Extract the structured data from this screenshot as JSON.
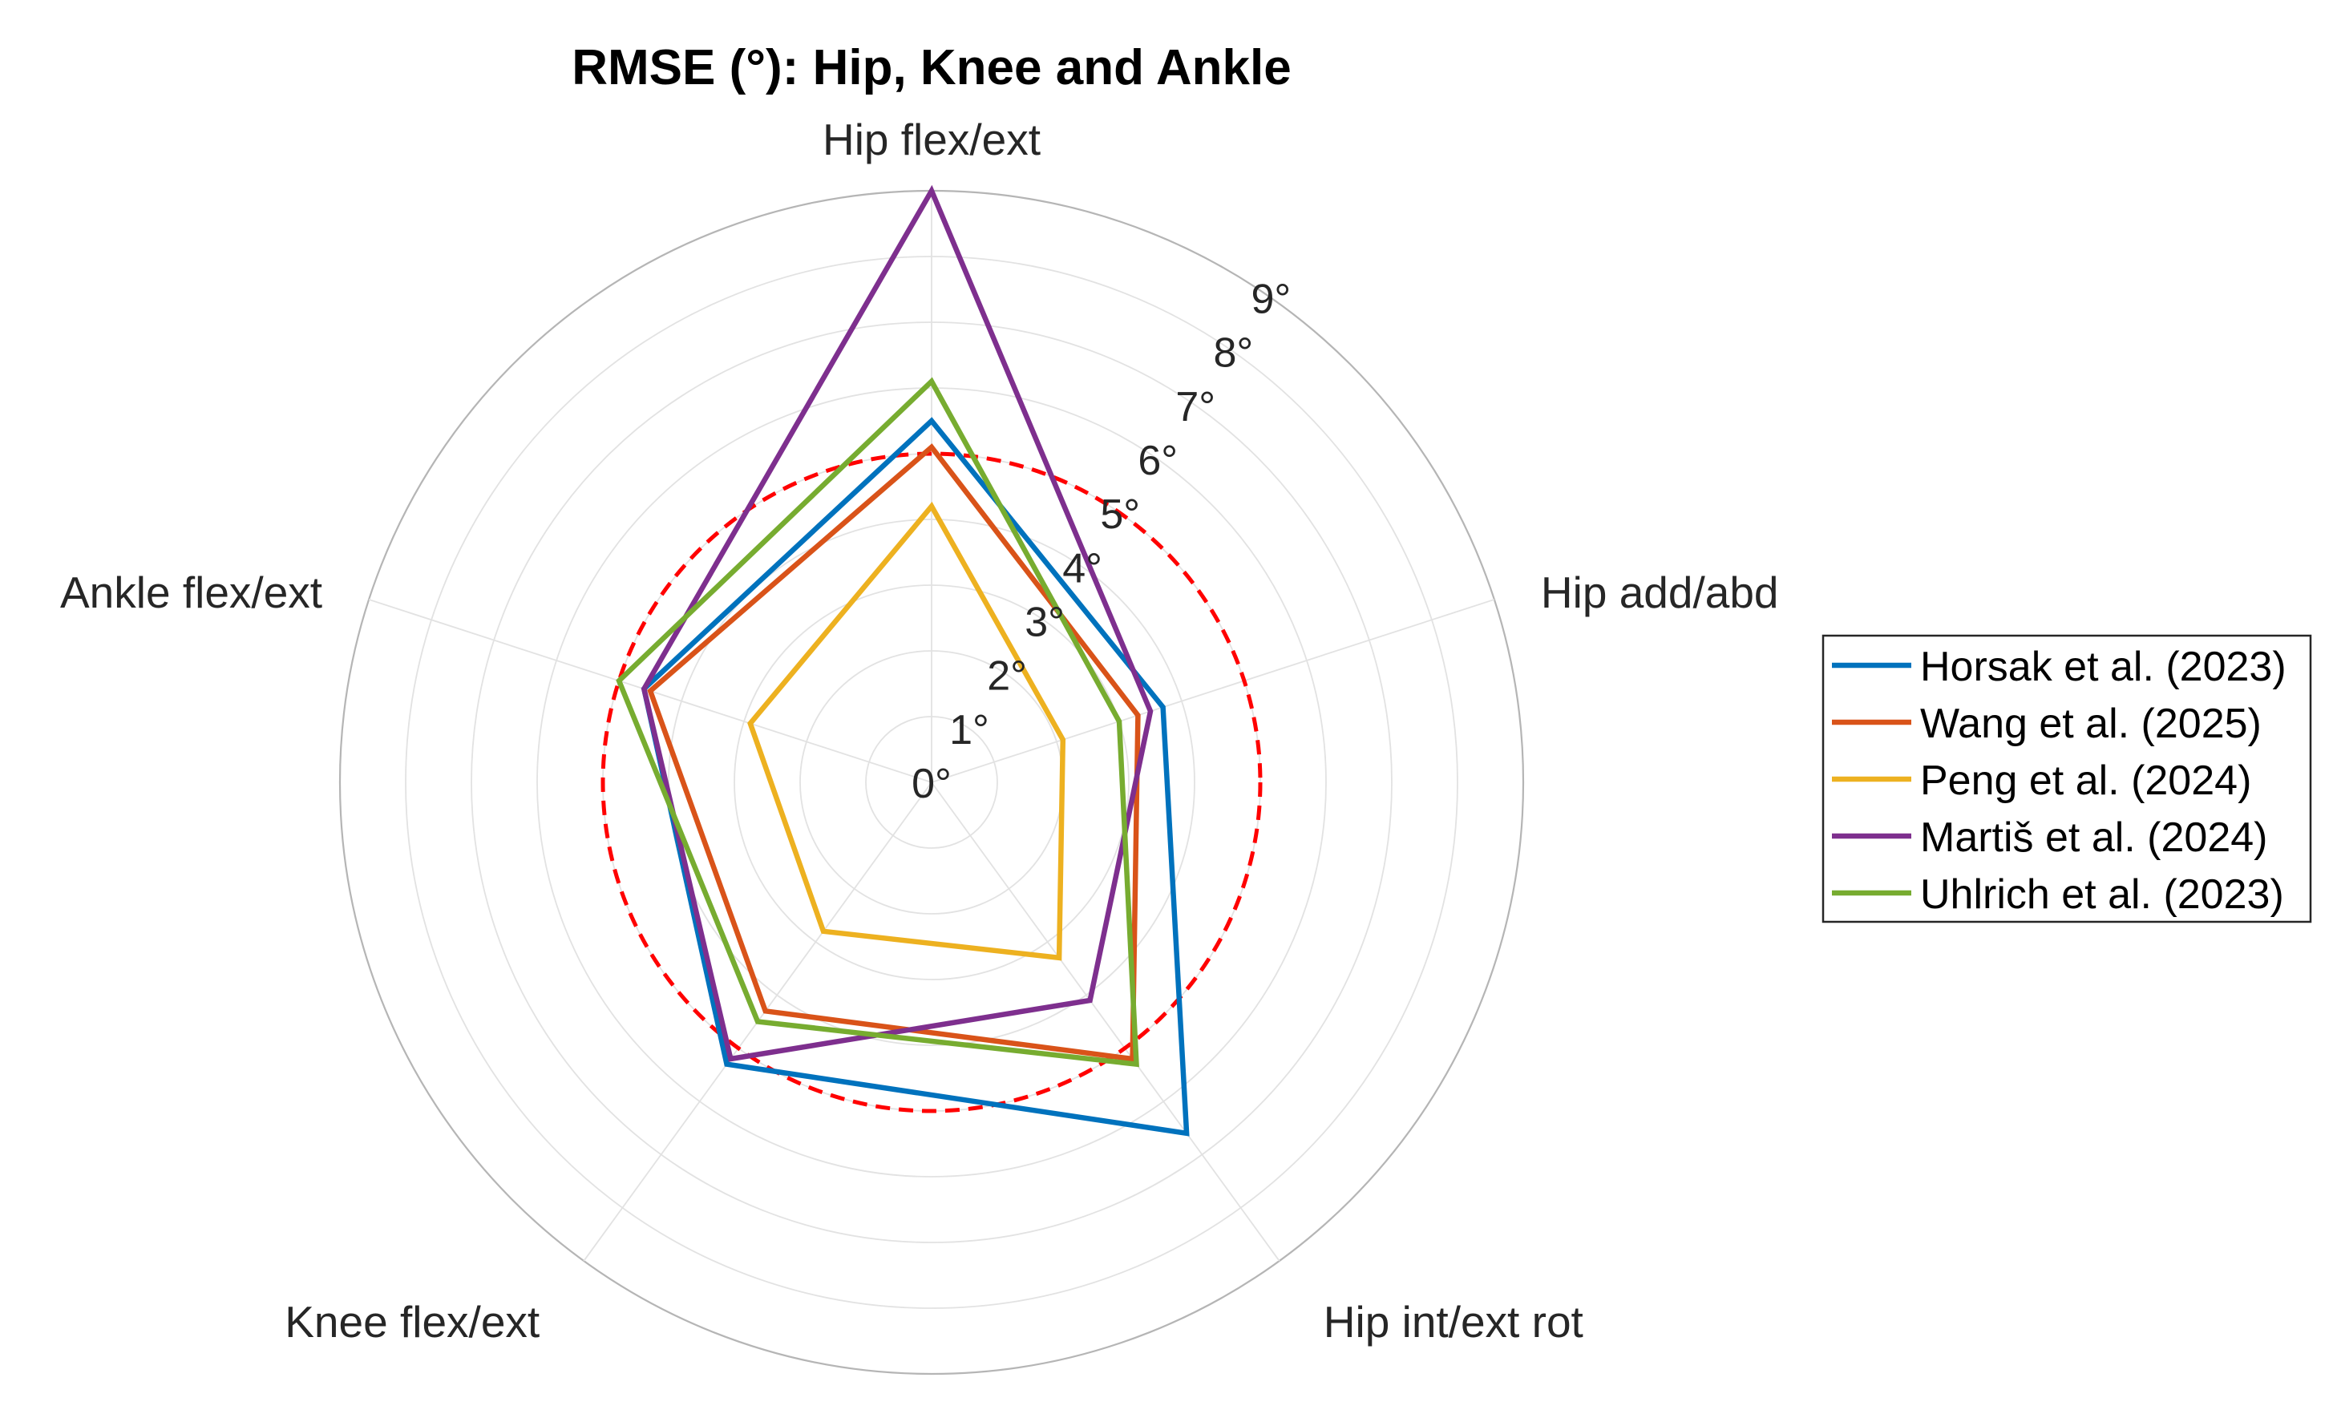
{
  "chart_data": {
    "type": "radar",
    "title": "RMSE (°): Hip, Knee and Ankle",
    "axes": [
      "Hip flex/ext",
      "Hip add/abd",
      "Hip int/ext rot",
      "Knee flex/ext",
      "Ankle flex/ext"
    ],
    "radial_ticks": [
      "0°",
      "1°",
      "2°",
      "3°",
      "4°",
      "5°",
      "6°",
      "7°",
      "8°",
      "9°"
    ],
    "rlim": [
      0,
      9
    ],
    "grid": true,
    "legend_position": "right",
    "threshold": {
      "value": 5,
      "color": "#ff0000",
      "style": "dashed"
    },
    "series": [
      {
        "name": "Horsak et al. (2023)",
        "color": "#0072bd",
        "values": [
          5.5,
          3.7,
          6.6,
          5.3,
          4.6
        ]
      },
      {
        "name": "Wang et al. (2025)",
        "color": "#d95319",
        "values": [
          5.1,
          3.3,
          5.2,
          4.3,
          4.5
        ]
      },
      {
        "name": "Peng et al. (2024)",
        "color": "#edb120",
        "values": [
          4.2,
          2.1,
          3.3,
          2.8,
          2.9
        ]
      },
      {
        "name": "Martiš et al. (2024)",
        "color": "#7e2f8e",
        "values": [
          9.0,
          3.5,
          4.1,
          5.2,
          4.6
        ]
      },
      {
        "name": "Uhlrich et al. (2023)",
        "color": "#77ac30",
        "values": [
          6.1,
          3.0,
          5.3,
          4.5,
          5.0
        ]
      }
    ]
  }
}
